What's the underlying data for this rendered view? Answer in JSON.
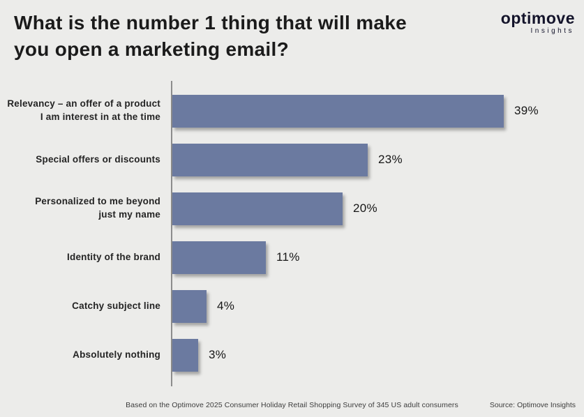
{
  "title": "What is the number 1 thing that will make\nyou open a marketing email?",
  "brand": {
    "name": "optimove",
    "subname": "Insights"
  },
  "chart_data": {
    "type": "bar",
    "orientation": "horizontal",
    "title": "What is the number 1 thing that will make you open a marketing email?",
    "categories": [
      "Relevancy – an offer of a product\nI am interest in at the time",
      "Special offers or discounts",
      "Personalized to me beyond\njust my name",
      "Identity of the brand",
      "Catchy subject line",
      "Absolutely nothing"
    ],
    "values": [
      39,
      23,
      20,
      11,
      4,
      3
    ],
    "value_labels": [
      "39%",
      "23%",
      "20%",
      "11%",
      "4%",
      "3%"
    ],
    "xlim": [
      0,
      40
    ],
    "grid": false,
    "legend": "none"
  },
  "footer": {
    "note": "Based on the Optimove 2025 Consumer Holiday Retail Shopping Survey of 345 US adult consumers",
    "source": "Source: Optimove Insights"
  },
  "colors": {
    "background": "#ececea",
    "bar": "#6b7aa0",
    "axis": "#8c8c8c",
    "text": "#1b1b1b"
  }
}
